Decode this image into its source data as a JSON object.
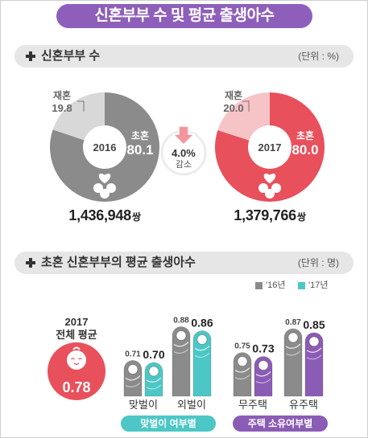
{
  "title": "신혼부부 수 및 평균 출생아수",
  "colors": {
    "banner": "#8e5fba",
    "section_bar": "#e6e6e6"
  },
  "section_couples": {
    "heading": "신혼부부 수",
    "unit": "(단위 : %)",
    "icon": "plus-icon"
  },
  "change": {
    "value": "4.0%",
    "label": "감소",
    "icon": "down-arrow-icon",
    "color": "#f2959c"
  },
  "section_births": {
    "heading": "초혼 신혼부부의 평균 출생아수",
    "unit": "(단위 : 명)",
    "icon": "plus-icon"
  },
  "chart_data": [
    {
      "type": "pie",
      "title": "2016",
      "categories": [
        "초혼",
        "재혼"
      ],
      "values": [
        80.1,
        19.8
      ],
      "colors": [
        "#8b8b8b",
        "#d8d8d8"
      ],
      "count": "1,436,948",
      "count_unit": "쌍",
      "icon": "couple-family-icon"
    },
    {
      "type": "pie",
      "title": "2017",
      "categories": [
        "초혼",
        "재혼"
      ],
      "values": [
        80.0,
        20.0
      ],
      "colors": [
        "#e8505b",
        "#f6c3c7"
      ],
      "count": "1,379,766",
      "count_unit": "쌍",
      "icon": "couple-family-icon"
    },
    {
      "type": "bar",
      "categories": [
        "맞벌이",
        "외벌이",
        "무주택",
        "유주택"
      ],
      "groups": [
        {
          "label": "맞벌이 여부별",
          "categories": [
            "맞벌이",
            "외벌이"
          ],
          "color": "#4cc7c6"
        },
        {
          "label": "주택 소유여부별",
          "categories": [
            "무주택",
            "유주택"
          ],
          "color": "#8b5cb5"
        }
      ],
      "series": [
        {
          "name": "'16년",
          "values": [
            0.71,
            0.88,
            0.75,
            0.87
          ],
          "color": "#8b8b8b"
        },
        {
          "name": "'17년",
          "values": [
            0.7,
            0.86,
            0.73,
            0.85
          ],
          "color": "#4cc7c6"
        }
      ],
      "legend": "top-right",
      "overall": {
        "year": "2017",
        "label": "전체 평균",
        "value": 0.78,
        "color": "#e8505b",
        "icon": "baby-face-icon"
      },
      "bar_icon": "swaddled-baby-icon"
    }
  ]
}
